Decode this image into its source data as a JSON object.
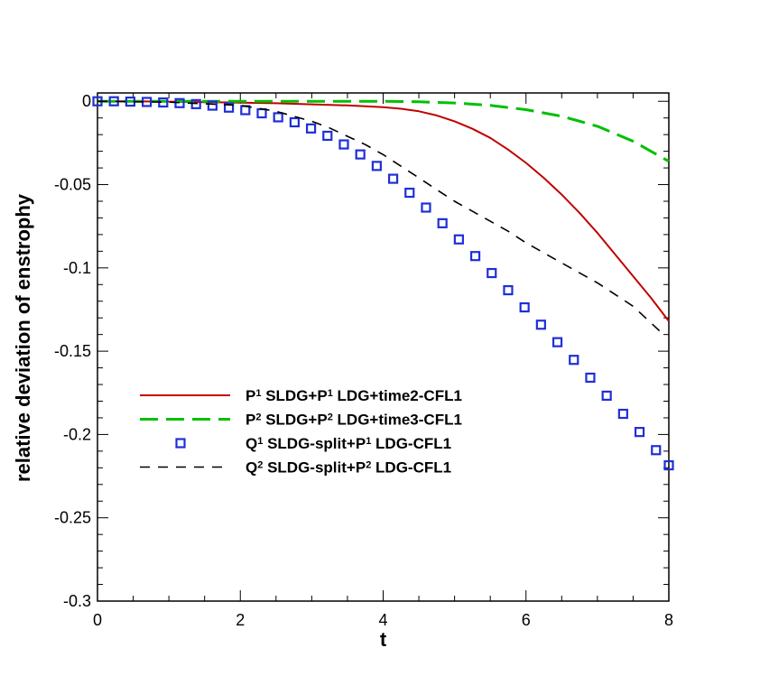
{
  "chart_data": {
    "type": "line",
    "xlabel": "t",
    "ylabel": "relative deviation of enstrophy",
    "xlim": [
      0,
      8
    ],
    "ylim": [
      -0.3,
      0.005
    ],
    "xticks": [
      0,
      2,
      4,
      6,
      8
    ],
    "xtick_labels": [
      "0",
      "2",
      "4",
      "6",
      "8"
    ],
    "yticks": [
      0,
      -0.05,
      -0.1,
      -0.15,
      -0.2,
      -0.25,
      -0.3
    ],
    "ytick_labels": [
      "0",
      "-0.05",
      "-0.1",
      "-0.15",
      "-0.2",
      "-0.25",
      "-0.3"
    ],
    "grid": false,
    "legend_position": "lower-left inside",
    "series": [
      {
        "legend": {
          "base": "P",
          "sup": "1",
          "text": " SLDG+P",
          "sup2": "1",
          "text2": " LDG+time2-CFL1"
        },
        "color": "#c00000",
        "style": "solid",
        "x": [
          0,
          0.5,
          1,
          1.5,
          2,
          2.5,
          3,
          3.5,
          4,
          4.25,
          4.5,
          4.75,
          5,
          5.25,
          5.5,
          5.75,
          6,
          6.25,
          6.5,
          6.75,
          7,
          7.25,
          7.5,
          7.75,
          8
        ],
        "y": [
          0,
          0,
          -0.0002,
          -0.0005,
          -0.0008,
          -0.0012,
          -0.0018,
          -0.0025,
          -0.0035,
          -0.0045,
          -0.006,
          -0.0085,
          -0.012,
          -0.0165,
          -0.022,
          -0.029,
          -0.037,
          -0.046,
          -0.056,
          -0.067,
          -0.079,
          -0.092,
          -0.105,
          -0.118,
          -0.132
        ]
      },
      {
        "legend": {
          "base": "P",
          "sup": "2",
          "text": " SLDG+P",
          "sup2": "2",
          "text2": " LDG+time3-CFL1"
        },
        "color": "#00c000",
        "style": "long-dash",
        "x": [
          0,
          1,
          2,
          3,
          4,
          4.5,
          5,
          5.5,
          6,
          6.5,
          7,
          7.5,
          8
        ],
        "y": [
          0,
          0,
          0,
          0,
          0,
          -0.0003,
          -0.001,
          -0.0025,
          -0.005,
          -0.009,
          -0.015,
          -0.024,
          -0.036
        ]
      },
      {
        "legend": {
          "base": "Q",
          "sup": "1",
          "text": " SLDG-split+P",
          "sup2": "1",
          "text2": " LDG-CFL1"
        },
        "color": "#1f2fd6",
        "style": "square-markers",
        "x": [
          0,
          0.23,
          0.46,
          0.69,
          0.92,
          1.15,
          1.38,
          1.61,
          1.84,
          2.07,
          2.3,
          2.53,
          2.76,
          2.99,
          3.22,
          3.45,
          3.68,
          3.91,
          4.14,
          4.37,
          4.6,
          4.83,
          5.06,
          5.29,
          5.52,
          5.75,
          5.98,
          6.21,
          6.44,
          6.67,
          6.9,
          7.13,
          7.36,
          7.59,
          7.82,
          8.0
        ],
        "y": [
          0,
          0,
          -0.0002,
          -0.0004,
          -0.0007,
          -0.0011,
          -0.0017,
          -0.0026,
          -0.0038,
          -0.0053,
          -0.0072,
          -0.0096,
          -0.0126,
          -0.0163,
          -0.0207,
          -0.0259,
          -0.0319,
          -0.0388,
          -0.0465,
          -0.0549,
          -0.0638,
          -0.0732,
          -0.0829,
          -0.0929,
          -0.1031,
          -0.1134,
          -0.1237,
          -0.1341,
          -0.1446,
          -0.1552,
          -0.1659,
          -0.1767,
          -0.1876,
          -0.1985,
          -0.2094,
          -0.2185
        ]
      },
      {
        "legend": {
          "base": "Q",
          "sup": "2",
          "text": " SLDG-split+P",
          "sup2": "2",
          "text2": " LDG-CFL1"
        },
        "color": "#000000",
        "style": "dash",
        "x": [
          0,
          1,
          2,
          2.5,
          3,
          3.25,
          3.5,
          3.75,
          4,
          4.25,
          4.5,
          4.75,
          5,
          5.25,
          5.5,
          5.75,
          6,
          6.5,
          7,
          7.5,
          7.9
        ],
        "y": [
          0,
          -0.0005,
          -0.0025,
          -0.006,
          -0.012,
          -0.016,
          -0.021,
          -0.026,
          -0.032,
          -0.039,
          -0.046,
          -0.053,
          -0.06,
          -0.066,
          -0.072,
          -0.078,
          -0.085,
          -0.097,
          -0.109,
          -0.123,
          -0.139
        ]
      }
    ]
  }
}
